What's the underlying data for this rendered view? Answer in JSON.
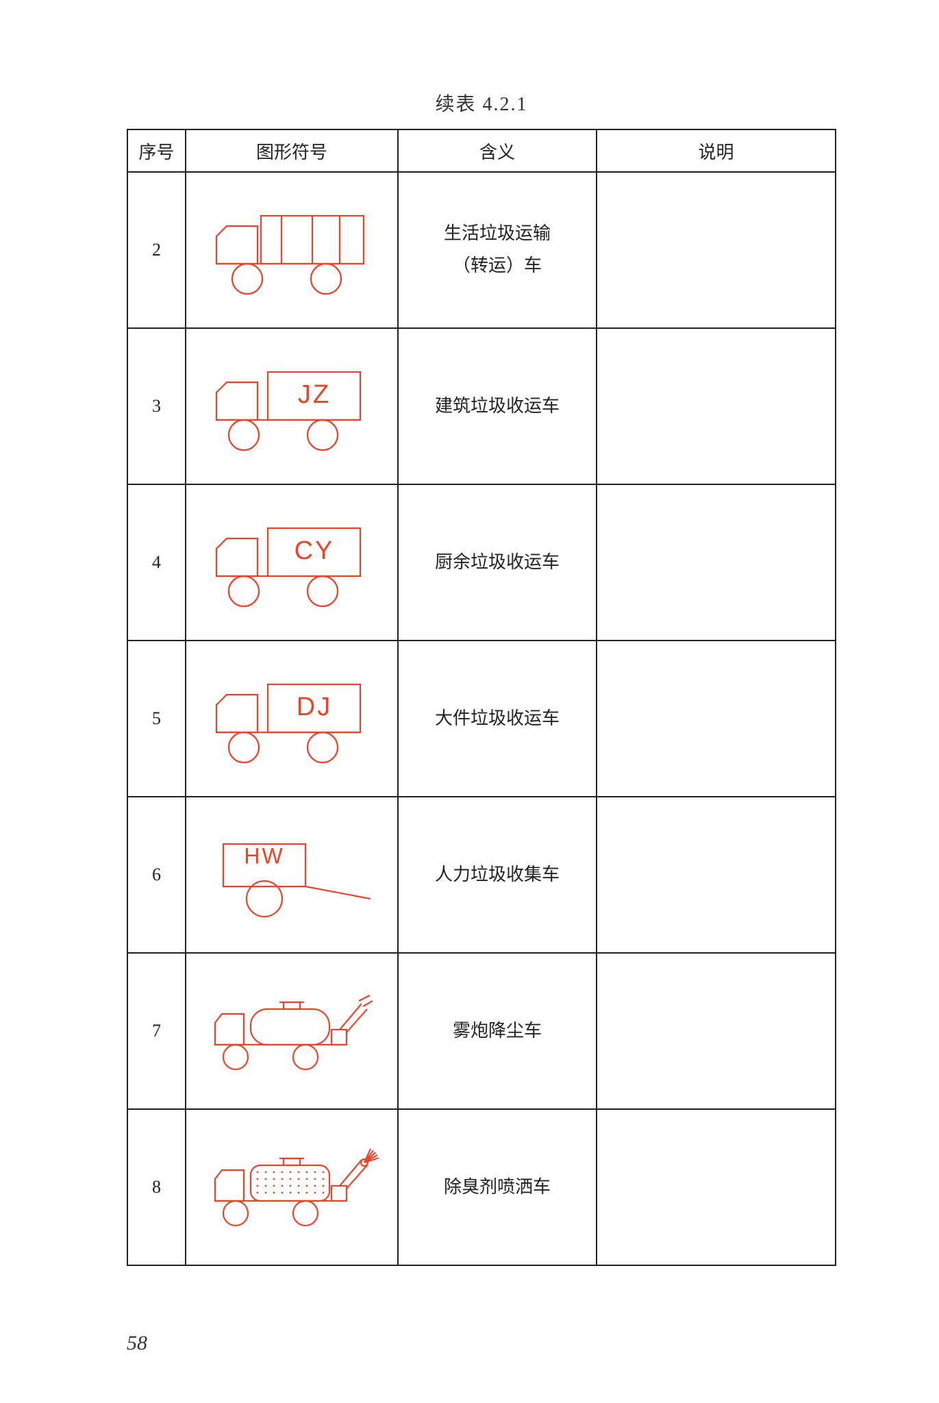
{
  "caption": "续表 4.2.1",
  "page_number": "58",
  "stroke_color": "#e8442a",
  "text_color": "#222222",
  "border_color": "#222222",
  "stroke_width": 2.2,
  "columns": [
    {
      "label": "序号"
    },
    {
      "label": "图形符号"
    },
    {
      "label": "含义"
    },
    {
      "label": "说明"
    }
  ],
  "rows": [
    {
      "seq": "2",
      "symbol_type": "segmented_truck",
      "symbol_label": "",
      "meaning": "生活垃圾运输\n（转运）车",
      "desc": ""
    },
    {
      "seq": "3",
      "symbol_type": "box_truck",
      "symbol_label": "JZ",
      "meaning": "建筑垃圾收运车",
      "desc": ""
    },
    {
      "seq": "4",
      "symbol_type": "box_truck",
      "symbol_label": "CY",
      "meaning": "厨余垃圾收运车",
      "desc": ""
    },
    {
      "seq": "5",
      "symbol_type": "box_truck",
      "symbol_label": "DJ",
      "meaning": "大件垃圾收运车",
      "desc": ""
    },
    {
      "seq": "6",
      "symbol_type": "hand_cart",
      "symbol_label": "HW",
      "meaning": "人力垃圾收集车",
      "desc": ""
    },
    {
      "seq": "7",
      "symbol_type": "fog_cannon",
      "symbol_label": "",
      "meaning": "雾炮降尘车",
      "desc": ""
    },
    {
      "seq": "8",
      "symbol_type": "spray_truck",
      "symbol_label": "",
      "meaning": "除臭剂喷洒车",
      "desc": ""
    }
  ]
}
